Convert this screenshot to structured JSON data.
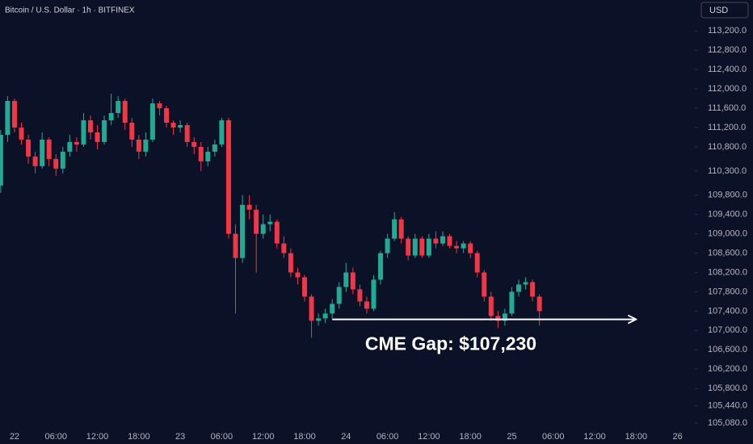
{
  "chart_data": {
    "type": "candlestick",
    "title": "Bitcoin / U.S. Dollar · 1h · BITFINEX",
    "currency": "USD",
    "annotation": "CME Gap: $107,230",
    "gap_level": 107230,
    "gap_x": [
      46,
      90
    ],
    "up_color": "#22ab94",
    "down_color": "#f23645",
    "x": [
      -2,
      -1,
      0,
      1,
      2,
      3,
      4,
      5,
      6,
      7,
      8,
      9,
      10,
      11,
      12,
      13,
      14,
      15,
      16,
      17,
      18,
      19,
      20,
      21,
      22,
      23,
      24,
      25,
      26,
      27,
      28,
      29,
      30,
      31,
      32,
      33,
      34,
      35,
      36,
      37,
      38,
      39,
      40,
      41,
      42,
      43,
      44,
      45,
      46,
      47,
      48,
      49,
      50,
      51,
      52,
      53,
      54,
      55,
      56,
      57,
      58,
      59,
      60,
      61,
      62,
      63,
      64,
      65,
      66,
      67,
      68,
      69,
      70,
      71,
      72,
      73,
      74,
      75,
      76
    ],
    "open": [
      110000,
      111050,
      111750,
      111200,
      110950,
      110600,
      110400,
      110950,
      110550,
      110350,
      110700,
      110900,
      110850,
      111350,
      111100,
      110900,
      111350,
      111500,
      111750,
      111300,
      110950,
      110700,
      110950,
      111700,
      111600,
      111300,
      111200,
      111250,
      110900,
      110800,
      110500,
      110700,
      110850,
      111350,
      109000,
      108500,
      109600,
      109500,
      109000,
      109200,
      109250,
      108800,
      108600,
      108200,
      108100,
      107700,
      107200,
      107250,
      107350,
      107550,
      107900,
      108200,
      107850,
      107600,
      107450,
      108050,
      108600,
      108900,
      109300,
      108900,
      108550,
      108900,
      108550,
      108900,
      108800,
      108950,
      108750,
      108700,
      108800,
      108600,
      108200,
      107700,
      107300,
      107200,
      107350,
      107800,
      107950,
      108000,
      107700
    ],
    "high": [
      111150,
      111850,
      111800,
      111300,
      111050,
      110700,
      111100,
      111000,
      110650,
      110800,
      111050,
      111000,
      111500,
      111450,
      111250,
      111450,
      111900,
      111850,
      111800,
      111400,
      111050,
      111100,
      111800,
      111750,
      111650,
      111350,
      111350,
      111300,
      111000,
      110900,
      110800,
      110950,
      111400,
      111400,
      109200,
      109800,
      109800,
      109600,
      109400,
      109400,
      109300,
      108950,
      108700,
      108300,
      108150,
      107750,
      107350,
      107450,
      107650,
      108000,
      108400,
      108300,
      107950,
      107700,
      108150,
      108650,
      109000,
      109450,
      109350,
      108950,
      109000,
      108950,
      109000,
      109050,
      109050,
      109000,
      108850,
      108850,
      108850,
      108650,
      108250,
      107800,
      107400,
      107450,
      107900,
      108050,
      108100,
      108050,
      107750
    ],
    "low": [
      109850,
      110900,
      111100,
      110850,
      110450,
      110250,
      110350,
      110400,
      110200,
      110250,
      110600,
      110700,
      110800,
      110950,
      110750,
      110850,
      111250,
      111400,
      111150,
      110800,
      110550,
      110600,
      110900,
      111450,
      111200,
      111050,
      111100,
      110800,
      110650,
      110300,
      110400,
      110600,
      110800,
      108900,
      107350,
      108400,
      109300,
      108200,
      108900,
      109050,
      108700,
      108500,
      108100,
      107950,
      107600,
      106850,
      107100,
      107150,
      107250,
      107450,
      107800,
      107750,
      107500,
      107350,
      107400,
      107950,
      108500,
      108850,
      108800,
      108450,
      108500,
      108500,
      108500,
      108700,
      108750,
      108700,
      108600,
      108600,
      108500,
      108100,
      107600,
      107200,
      107050,
      107100,
      107300,
      107700,
      107850,
      107600,
      107100
    ],
    "close": [
      111050,
      111750,
      111200,
      110950,
      110600,
      110400,
      110950,
      110550,
      110350,
      110700,
      110900,
      110850,
      111350,
      111100,
      110900,
      111350,
      111500,
      111750,
      111300,
      110950,
      110700,
      110950,
      111700,
      111600,
      111300,
      111200,
      111250,
      110900,
      110800,
      110500,
      110700,
      110850,
      111350,
      109000,
      108500,
      109600,
      109500,
      109000,
      109200,
      109250,
      108800,
      108600,
      108200,
      108100,
      107700,
      107200,
      107250,
      107350,
      107550,
      107900,
      108200,
      107850,
      107600,
      107450,
      108050,
      108600,
      108900,
      109300,
      108900,
      108550,
      108900,
      108550,
      108900,
      108800,
      108950,
      108750,
      108700,
      108800,
      108600,
      108200,
      107700,
      107300,
      107200,
      107350,
      107800,
      107950,
      108000,
      107700,
      107400
    ],
    "xlim": [
      -2.1,
      98.5
    ],
    "xticks": [
      {
        "value": 0,
        "label": "22"
      },
      {
        "value": 6,
        "label": "06:00"
      },
      {
        "value": 12,
        "label": "12:00"
      },
      {
        "value": 18,
        "label": "18:00"
      },
      {
        "value": 24,
        "label": "23"
      },
      {
        "value": 30,
        "label": "06:00"
      },
      {
        "value": 36,
        "label": "12:00"
      },
      {
        "value": 42,
        "label": "18:00"
      },
      {
        "value": 48,
        "label": "24"
      },
      {
        "value": 54,
        "label": "06:00"
      },
      {
        "value": 60,
        "label": "12:00"
      },
      {
        "value": 66,
        "label": "18:00"
      },
      {
        "value": 72,
        "label": "25"
      },
      {
        "value": 78,
        "label": "06:00"
      },
      {
        "value": 84,
        "label": "12:00"
      },
      {
        "value": 90,
        "label": "18:00"
      },
      {
        "value": 96,
        "label": "26"
      }
    ],
    "ylim": [
      104900,
      113840
    ],
    "yticks": [
      {
        "value": 113200,
        "label": "113,200.0"
      },
      {
        "value": 112800,
        "label": "112,800.0"
      },
      {
        "value": 112400,
        "label": "112,400.0"
      },
      {
        "value": 112000,
        "label": "112,000.0"
      },
      {
        "value": 111600,
        "label": "111,600.0"
      },
      {
        "value": 111200,
        "label": "111,200.0"
      },
      {
        "value": 110800,
        "label": "110,800.0"
      },
      {
        "value": 110300,
        "label": "110,300.0"
      },
      {
        "value": 109800,
        "label": "109,800.0"
      },
      {
        "value": 109400,
        "label": "109,400.0"
      },
      {
        "value": 109000,
        "label": "109,000.0"
      },
      {
        "value": 108600,
        "label": "108,600.0"
      },
      {
        "value": 108200,
        "label": "108,200.0"
      },
      {
        "value": 107800,
        "label": "107,800.0"
      },
      {
        "value": 107400,
        "label": "107,400.0"
      },
      {
        "value": 107000,
        "label": "107,000.0"
      },
      {
        "value": 106600,
        "label": "106,600.0"
      },
      {
        "value": 106200,
        "label": "106,200.0"
      },
      {
        "value": 105800,
        "label": "105,800.0"
      },
      {
        "value": 105440,
        "label": "105,440.0"
      },
      {
        "value": 105080,
        "label": "105,080.0"
      }
    ]
  }
}
